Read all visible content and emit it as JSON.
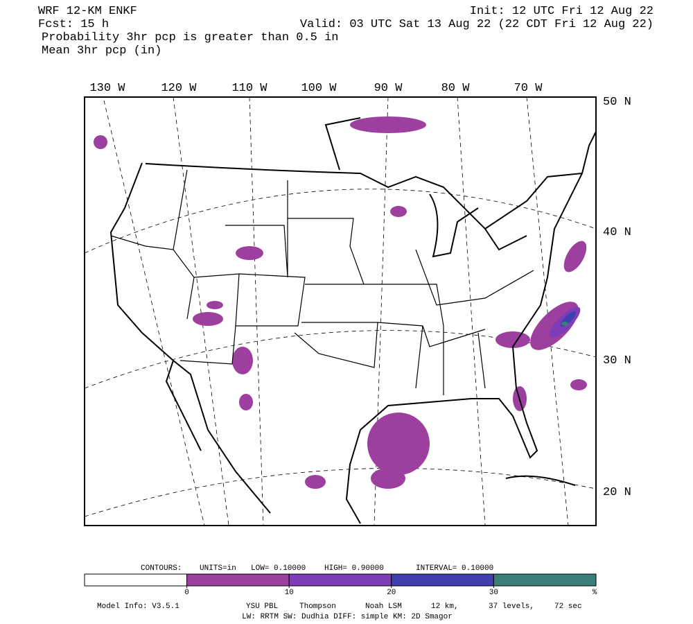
{
  "header": {
    "model": "WRF 12-KM ENKF",
    "init": "Init: 12 UTC Fri 12 Aug 22",
    "fcst": "Fcst:   15 h",
    "valid": "Valid: 03 UTC Sat 13 Aug 22 (22 CDT Fri 12 Aug 22)",
    "field1": "Probability 3hr pcp is greater than 0.5 in",
    "field2": "Mean 3hr pcp (in)"
  },
  "map": {
    "lon_labels": [
      "130 W",
      "120 W",
      "110 W",
      "100 W",
      "90 W",
      "80 W",
      "70 W"
    ],
    "lat_labels": [
      "50 N",
      "40 N",
      "30 N",
      "20 N"
    ]
  },
  "contours": {
    "label": "CONTOURS:",
    "units": "UNITS=in",
    "low": "LOW= 0.10000",
    "high": "HIGH= 0.90000",
    "interval": "INTERVAL= 0.10000"
  },
  "colorbar": {
    "ticks": [
      0,
      10,
      20,
      30
    ],
    "unit": "%",
    "colors": [
      "#ffffff",
      "#9c3f9e",
      "#7e3cb8",
      "#3f3fb0",
      "#3a7f7a"
    ]
  },
  "footer": {
    "model_info": "Model Info: V3.5.1",
    "pbl": "YSU PBL",
    "micro": "Thompson",
    "lsm": "Noah LSM",
    "res": "12 km,",
    "levels": "37 levels,",
    "dt": "72 sec",
    "line2": "LW: RRTM SW: Dudhia  DIFF: simple KM: 2D Smagor"
  }
}
